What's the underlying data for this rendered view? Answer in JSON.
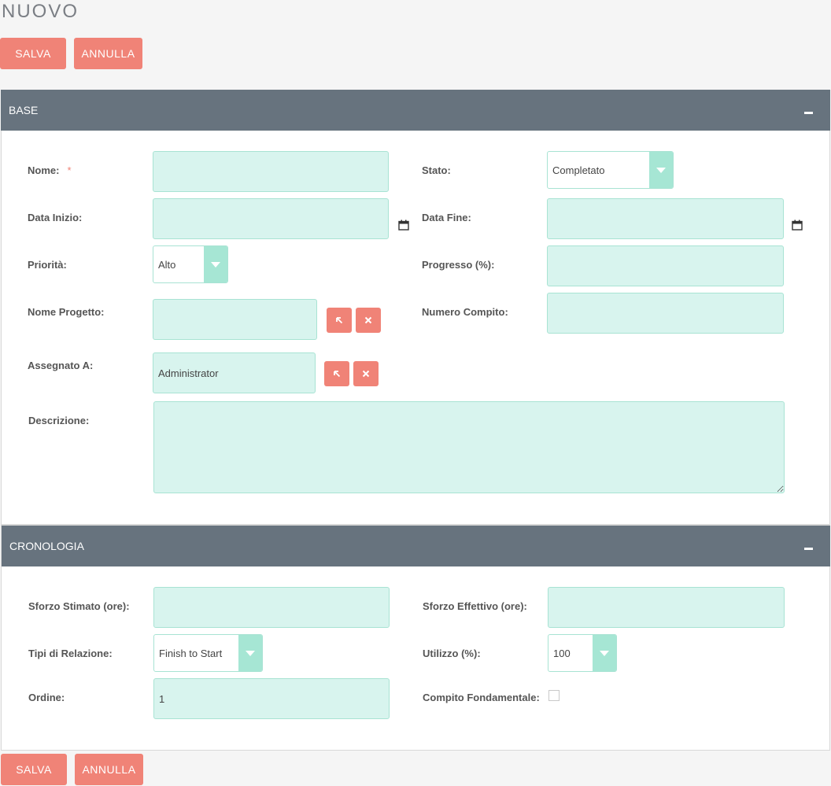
{
  "page": {
    "title": "NUOVO"
  },
  "actions": {
    "save_label": "SALVA",
    "cancel_label": "ANNULLA"
  },
  "panels": {
    "base": {
      "title": "BASE",
      "labels": {
        "nome": "Nome:",
        "required_mark": "*",
        "stato": "Stato:",
        "data_inizio": "Data Inizio:",
        "data_fine": "Data Fine:",
        "priorita": "Priorità:",
        "progresso": "Progresso (%):",
        "nome_progetto": "Nome Progetto:",
        "numero_compito": "Numero Compito:",
        "assegnato_a": "Assegnato A:",
        "descrizione": "Descrizione:"
      },
      "values": {
        "nome": "",
        "stato": "Completato",
        "data_inizio": "",
        "data_fine": "",
        "priorita": "Alto",
        "progresso": "",
        "nome_progetto": "",
        "numero_compito": "",
        "assegnato_a": "Administrator",
        "descrizione": ""
      }
    },
    "cronologia": {
      "title": "CRONOLOGIA",
      "labels": {
        "sforzo_stimato": "Sforzo Stimato (ore):",
        "sforzo_effettivo": "Sforzo Effettivo (ore):",
        "tipi_relazione": "Tipi di Relazione:",
        "utilizzo": "Utilizzo (%):",
        "ordine": "Ordine:",
        "compito_fondamentale": "Compito Fondamentale:"
      },
      "values": {
        "sforzo_stimato": "",
        "sforzo_effettivo": "",
        "tipi_relazione": "Finish to Start",
        "utilizzo": "100",
        "ordine": "1",
        "compito_fondamentale": false
      }
    }
  },
  "icons": {
    "calendar": "calendar-icon",
    "select": "arrow-select-icon",
    "clear": "close-icon",
    "collapse": "minus-icon"
  },
  "colors": {
    "accent": "#f08377",
    "field_bg": "#d8f4ee",
    "field_border": "#a8e3d3",
    "panel_header": "#67737e",
    "dropdown_arrow": "#a6e6d4"
  }
}
